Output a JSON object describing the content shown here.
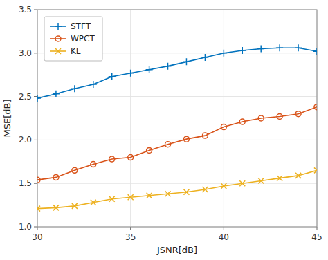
{
  "chart_data": {
    "type": "line",
    "xlabel": "JSNR[dB]",
    "ylabel": "MSE[dB]",
    "x": [
      30,
      31,
      32,
      33,
      34,
      35,
      36,
      37,
      38,
      39,
      40,
      41,
      42,
      43,
      44,
      45
    ],
    "series": [
      {
        "name": "STFT",
        "color": "#0072BD",
        "marker": "plus",
        "values": [
          2.48,
          2.53,
          2.59,
          2.64,
          2.73,
          2.77,
          2.81,
          2.85,
          2.9,
          2.95,
          3.0,
          3.03,
          3.05,
          3.06,
          3.06,
          3.02
        ]
      },
      {
        "name": "WPCT",
        "color": "#D95319",
        "marker": "circle",
        "values": [
          1.54,
          1.57,
          1.65,
          1.72,
          1.78,
          1.8,
          1.88,
          1.95,
          2.01,
          2.05,
          2.15,
          2.21,
          2.25,
          2.27,
          2.3,
          2.38
        ]
      },
      {
        "name": "KL",
        "color": "#EDB120",
        "marker": "x",
        "values": [
          1.21,
          1.22,
          1.24,
          1.28,
          1.32,
          1.34,
          1.36,
          1.38,
          1.4,
          1.43,
          1.47,
          1.5,
          1.53,
          1.56,
          1.59,
          1.65
        ]
      }
    ],
    "xlim": [
      30,
      45
    ],
    "ylim": [
      1.0,
      3.5
    ],
    "xticks": [
      30,
      35,
      40,
      45
    ],
    "yticks": [
      {
        "value": 1.0,
        "label": "1.0"
      },
      1.5,
      {
        "value": 2.0,
        "label": "2.0"
      },
      2.5,
      {
        "value": 3.0,
        "label": "3.0"
      },
      3.5
    ],
    "grid": true,
    "legend": "upper left"
  }
}
